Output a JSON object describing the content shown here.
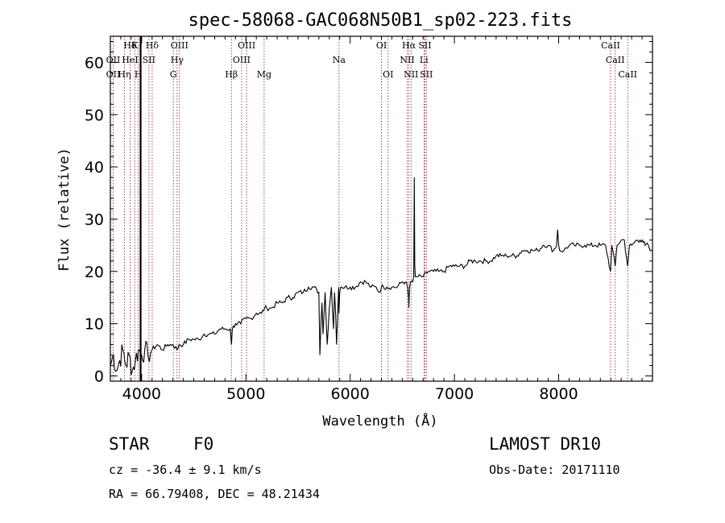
{
  "chart_data": {
    "type": "line",
    "title": "spec-58068-GAC068N50B1_sp02-223.fits",
    "xlabel": "Wavelength (Å)",
    "ylabel": "Flux (relative)",
    "xlim": [
      3700,
      8900
    ],
    "ylim": [
      -1,
      65
    ],
    "xticks": [
      4000,
      5000,
      6000,
      7000,
      8000
    ],
    "yticks": [
      0,
      10,
      20,
      30,
      40,
      50,
      60
    ],
    "vline_color": "#8b1a1a",
    "spectrum": {
      "name": "flux",
      "x": [
        3700,
        3730,
        3760,
        3790,
        3820,
        3850,
        3880,
        3910,
        3940,
        3970,
        4000,
        4030,
        4060,
        4100,
        4150,
        4200,
        4250,
        4300,
        4340,
        4360,
        4400,
        4450,
        4500,
        4550,
        4600,
        4650,
        4700,
        4750,
        4800,
        4850,
        4861,
        4870,
        4900,
        4950,
        5000,
        5050,
        5100,
        5150,
        5180,
        5200,
        5250,
        5300,
        5350,
        5400,
        5450,
        5500,
        5550,
        5600,
        5650,
        5700,
        5710,
        5720,
        5730,
        5740,
        5760,
        5780,
        5800,
        5820,
        5840,
        5850,
        5860,
        5870,
        5890,
        5893,
        5900,
        5910,
        5920,
        5950,
        6000,
        6050,
        6100,
        6150,
        6200,
        6250,
        6280,
        6300,
        6320,
        6350,
        6400,
        6450,
        6500,
        6530,
        6550,
        6560,
        6563,
        6570,
        6580,
        6600,
        6610,
        6615,
        6620,
        6625,
        6640,
        6700,
        6750,
        6800,
        6850,
        6900,
        6950,
        7000,
        7050,
        7100,
        7150,
        7200,
        7250,
        7300,
        7350,
        7400,
        7450,
        7500,
        7550,
        7600,
        7650,
        7700,
        7750,
        7800,
        7850,
        7900,
        7950,
        7980,
        7990,
        8000,
        8010,
        8050,
        8100,
        8150,
        8200,
        8250,
        8300,
        8350,
        8400,
        8450,
        8498,
        8510,
        8542,
        8560,
        8600,
        8630,
        8662,
        8680,
        8700,
        8750,
        8780,
        8800,
        8830,
        8860,
        8880
      ],
      "y": [
        2,
        4,
        1,
        3,
        5,
        2,
        4,
        1,
        3,
        5,
        4,
        5,
        4,
        5,
        6,
        5,
        6,
        6,
        5,
        6,
        6,
        7,
        7,
        7,
        8,
        8,
        8,
        9,
        9,
        9,
        6,
        9,
        10,
        10,
        11,
        11,
        12,
        12,
        13,
        13,
        13,
        14,
        14,
        15,
        15,
        16,
        16,
        17,
        17,
        16,
        4,
        10,
        14,
        8,
        16,
        6,
        13,
        17,
        9,
        16,
        12,
        6,
        17,
        12,
        16,
        17,
        17,
        17,
        17,
        17,
        18,
        18,
        17,
        17,
        16,
        17,
        17,
        17,
        17,
        17,
        18,
        18,
        17,
        15,
        13,
        17,
        18,
        18,
        19,
        38,
        21,
        19,
        19,
        19,
        20,
        20,
        20,
        20,
        21,
        21,
        21,
        21,
        22,
        22,
        22,
        22,
        22,
        23,
        23,
        23,
        23,
        23,
        24,
        24,
        24,
        24,
        25,
        25,
        24,
        25,
        28,
        25,
        24,
        24,
        25,
        25,
        25,
        25,
        25,
        25,
        25,
        25,
        20,
        25,
        21,
        25,
        26,
        26,
        21,
        25,
        25,
        26,
        26,
        26,
        25,
        25,
        24
      ]
    },
    "lines_row1": [
      {
        "label": "Hδ",
        "x": 3889
      },
      {
        "label": "K",
        "x": 3934
      },
      {
        "label": "Hδ",
        "x": 4101
      },
      {
        "label": "OIII",
        "x": 4363
      },
      {
        "label": "OIII",
        "x": 5007
      },
      {
        "label": "OI",
        "x": 6300
      },
      {
        "label": "Hα",
        "x": 6563
      },
      {
        "label": "SII",
        "x": 6717
      },
      {
        "label": "CaII",
        "x": 8498
      }
    ],
    "lines_row2": [
      {
        "label": "OII",
        "x": 3727
      },
      {
        "label": "HeI",
        "x": 3889
      },
      {
        "label": "SII",
        "x": 4070
      },
      {
        "label": "Hγ",
        "x": 4340
      },
      {
        "label": "OIII",
        "x": 4959
      },
      {
        "label": "Na",
        "x": 5893
      },
      {
        "label": "NII",
        "x": 6548
      },
      {
        "label": "Li",
        "x": 6708
      },
      {
        "label": "CaII",
        "x": 8542
      }
    ],
    "lines_row3": [
      {
        "label": "OII",
        "x": 3727
      },
      {
        "label": "Hη",
        "x": 3835
      },
      {
        "label": "H",
        "x": 3968
      },
      {
        "label": "G",
        "x": 4304
      },
      {
        "label": "Hβ",
        "x": 4861
      },
      {
        "label": "Mg",
        "x": 5175
      },
      {
        "label": "OI",
        "x": 6364
      },
      {
        "label": "NII",
        "x": 6584
      },
      {
        "label": "SII",
        "x": 6731
      },
      {
        "label": "CaII",
        "x": 8662
      }
    ]
  },
  "info": {
    "class": "STAR",
    "subclass": "F0",
    "cz": "cz = -36.4 ± 9.1 km/s",
    "coords": "RA =  66.79408, DEC =  48.21434",
    "survey": "LAMOST DR10",
    "obsdate": "Obs-Date: 20171110"
  }
}
